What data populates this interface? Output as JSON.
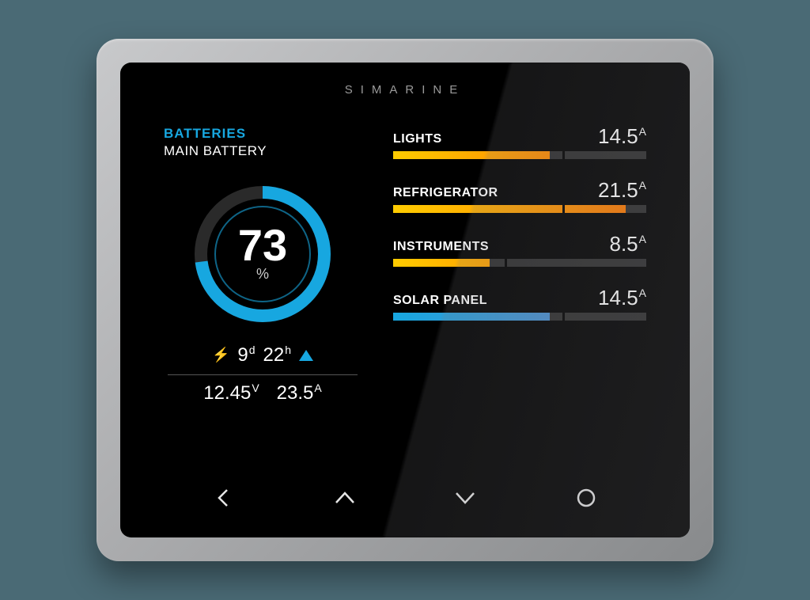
{
  "brand": "SIMARINE",
  "colors": {
    "accent": "#17a7e0",
    "background": "#000000",
    "bezel": "#a8a9ab",
    "page_bg": "#4a6a75",
    "gauge_track": "#2a2a2a",
    "bar_track": "#2e2e2e",
    "text": "#ffffff",
    "text_muted": "#9a9a9a"
  },
  "battery": {
    "section_label": "BATTERIES",
    "name": "MAIN BATTERY",
    "percent": 73,
    "percent_unit": "%",
    "gauge_fill_color": "#17a7e0",
    "gauge_track_color": "#2a2a2a",
    "time_days": 9,
    "time_days_unit": "d",
    "time_hours": 22,
    "time_hours_unit": "h",
    "trend": "up",
    "voltage": "12.45",
    "voltage_unit": "V",
    "current": "23.5",
    "current_unit": "A"
  },
  "loads": [
    {
      "name": "LIGHTS",
      "value": "14.5",
      "unit": "A",
      "fill_pct": 62,
      "marker_pct": 67,
      "gradient_from": "#ffcc00",
      "gradient_to": "#ff8a00"
    },
    {
      "name": "REFRIGERATOR",
      "value": "21.5",
      "unit": "A",
      "fill_pct": 92,
      "marker_pct": 67,
      "gradient_from": "#ffcc00",
      "gradient_to": "#ff7a00"
    },
    {
      "name": "INSTRUMENTS",
      "value": "8.5",
      "unit": "A",
      "fill_pct": 38,
      "marker_pct": 44,
      "gradient_from": "#ffcc00",
      "gradient_to": "#ffa200"
    },
    {
      "name": "SOLAR PANEL",
      "value": "14.5",
      "unit": "A",
      "fill_pct": 62,
      "marker_pct": 67,
      "gradient_from": "#17a7e0",
      "gradient_to": "#4a8fd0"
    }
  ],
  "nav": {
    "back": "back",
    "up": "up",
    "down": "down",
    "menu": "menu"
  }
}
